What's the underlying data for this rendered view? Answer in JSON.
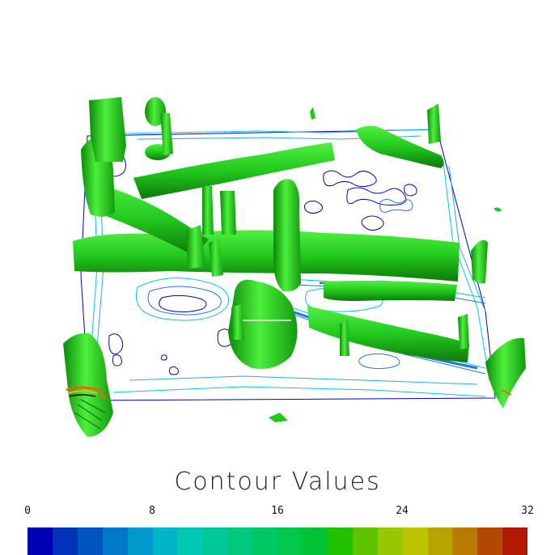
{
  "legend": {
    "title": "Contour Values",
    "ticks": [
      "0",
      "8",
      "16",
      "24",
      "32"
    ],
    "colors": [
      "#0000b4",
      "#0033b8",
      "#0055c0",
      "#0077c8",
      "#0099cc",
      "#00b5c8",
      "#00c8b4",
      "#00c89a",
      "#00c87d",
      "#00c864",
      "#00c84a",
      "#00c232",
      "#22c200",
      "#5fc400",
      "#98c800",
      "#bcc400",
      "#b8a400",
      "#b87a00",
      "#b44a00",
      "#b01800"
    ]
  },
  "colors": {
    "isosurface": "#22c81e",
    "isosurface_light": "#4cf03c",
    "isosurface_dark": "#0f8a0a",
    "contour_dark": "#0000c8",
    "contour_light": "#00c8e6",
    "contour_mid": "#1e78e6"
  }
}
